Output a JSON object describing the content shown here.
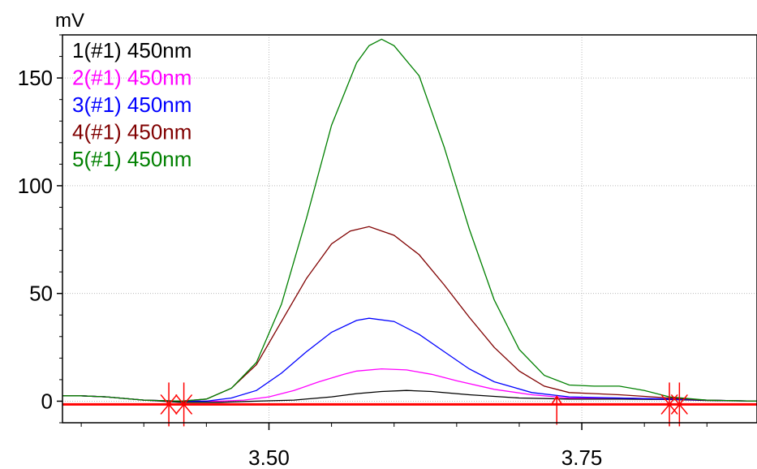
{
  "chart_data": {
    "type": "line",
    "title": "",
    "xlabel": "",
    "ylabel": "mV",
    "xlim": [
      3.335,
      3.89
    ],
    "ylim": [
      -10,
      170
    ],
    "x_ticks": [
      3.5,
      3.75
    ],
    "x_tick_labels": [
      "3.50",
      "3.75"
    ],
    "y_ticks": [
      0,
      50,
      100,
      150
    ],
    "y_tick_labels": [
      "0",
      "50",
      "100",
      "150"
    ],
    "grid": true,
    "legend_position": "top-left",
    "series": [
      {
        "name": "1(#1) 450nm",
        "color": "#000000",
        "x": [
          3.335,
          3.35,
          3.37,
          3.4,
          3.43,
          3.46,
          3.49,
          3.52,
          3.55,
          3.57,
          3.59,
          3.61,
          3.63,
          3.66,
          3.7,
          3.74,
          3.78,
          3.82,
          3.85,
          3.89
        ],
        "y": [
          2.5,
          2.5,
          2.0,
          0.5,
          -0.5,
          -0.5,
          0.0,
          0.5,
          2.0,
          3.5,
          4.5,
          5.0,
          4.5,
          3.0,
          1.5,
          1.0,
          1.0,
          0.8,
          0.3,
          0.0
        ]
      },
      {
        "name": "2(#1) 450nm",
        "color": "#ff00ff",
        "x": [
          3.335,
          3.35,
          3.37,
          3.4,
          3.43,
          3.46,
          3.48,
          3.5,
          3.52,
          3.54,
          3.56,
          3.57,
          3.59,
          3.61,
          3.63,
          3.65,
          3.68,
          3.71,
          3.74,
          3.78,
          3.82,
          3.85,
          3.89
        ],
        "y": [
          2.5,
          2.5,
          2.0,
          0.5,
          0.0,
          0.0,
          0.5,
          2.0,
          5.0,
          9.0,
          12.5,
          14.0,
          15.0,
          14.5,
          12.5,
          9.5,
          5.5,
          3.0,
          1.5,
          1.5,
          1.0,
          0.5,
          0.0
        ]
      },
      {
        "name": "3(#1) 450nm",
        "color": "#0000ff",
        "x": [
          3.335,
          3.35,
          3.37,
          3.4,
          3.43,
          3.45,
          3.47,
          3.49,
          3.51,
          3.53,
          3.55,
          3.57,
          3.58,
          3.6,
          3.62,
          3.64,
          3.66,
          3.68,
          3.71,
          3.74,
          3.78,
          3.82,
          3.85,
          3.89
        ],
        "y": [
          2.5,
          2.5,
          2.0,
          0.5,
          0.0,
          0.0,
          1.5,
          5.0,
          13.0,
          23.0,
          32.0,
          37.5,
          38.5,
          37.0,
          31.0,
          23.0,
          15.0,
          9.0,
          4.0,
          2.0,
          1.5,
          1.0,
          0.5,
          0.0
        ]
      },
      {
        "name": "4(#1) 450nm",
        "color": "#800000",
        "x": [
          3.335,
          3.35,
          3.37,
          3.4,
          3.43,
          3.45,
          3.47,
          3.49,
          3.51,
          3.53,
          3.55,
          3.565,
          3.58,
          3.6,
          3.62,
          3.64,
          3.66,
          3.68,
          3.7,
          3.72,
          3.74,
          3.76,
          3.78,
          3.82,
          3.85,
          3.89
        ],
        "y": [
          2.5,
          2.5,
          2.0,
          0.5,
          0.0,
          1.0,
          6.0,
          17.0,
          37.0,
          57.0,
          73.0,
          79.0,
          81.0,
          77.0,
          68.0,
          54.0,
          39.0,
          25.0,
          14.0,
          7.0,
          4.0,
          3.5,
          3.0,
          1.5,
          0.5,
          0.0
        ]
      },
      {
        "name": "5(#1) 450nm",
        "color": "#008000",
        "x": [
          3.335,
          3.35,
          3.37,
          3.4,
          3.43,
          3.45,
          3.47,
          3.49,
          3.51,
          3.53,
          3.55,
          3.57,
          3.58,
          3.59,
          3.6,
          3.62,
          3.64,
          3.66,
          3.68,
          3.7,
          3.72,
          3.74,
          3.76,
          3.78,
          3.8,
          3.82,
          3.85,
          3.89
        ],
        "y": [
          2.5,
          2.5,
          2.0,
          0.5,
          0.0,
          1.0,
          6.0,
          18.0,
          45.0,
          85.0,
          128.0,
          157.0,
          165.0,
          168.0,
          165.0,
          151.0,
          118.0,
          80.0,
          47.0,
          24.0,
          12.0,
          7.5,
          7.0,
          7.0,
          5.0,
          2.0,
          0.5,
          0.0
        ]
      }
    ],
    "baseline": {
      "color": "#ff0000",
      "y": -1.5
    },
    "markers": {
      "color": "#ff0000",
      "x_stars": [
        3.42,
        3.432,
        3.82,
        3.828
      ],
      "x_arrow": [
        3.73
      ]
    }
  }
}
